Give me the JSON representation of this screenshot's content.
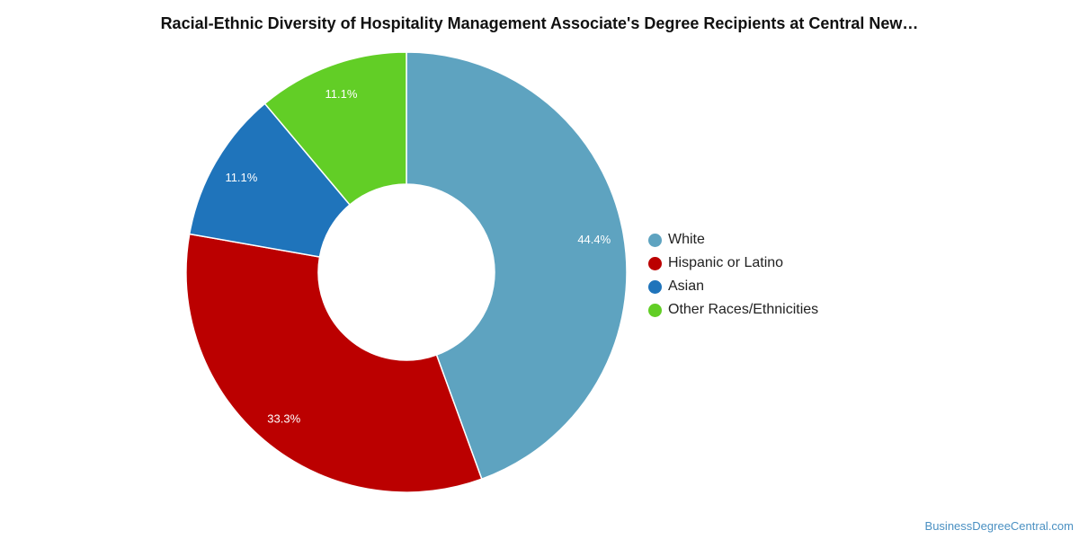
{
  "chart_data": {
    "type": "pie",
    "title": "Racial-Ethnic Diversity of Hospitality Management Associate's Degree Recipients at Central New…",
    "categories": [
      "White",
      "Hispanic or Latino",
      "Asian",
      "Other Races/Ethnicities"
    ],
    "values": [
      44.4,
      33.3,
      11.1,
      11.1
    ],
    "labels": [
      "44.4%",
      "33.3%",
      "11.1%",
      "11.1%"
    ],
    "colors": [
      "#5ea3c0",
      "#bb0000",
      "#1f74bb",
      "#62ce26"
    ],
    "donut": true,
    "legend_position": "right"
  },
  "legend": {
    "items": [
      {
        "label": "White",
        "color": "#5ea3c0"
      },
      {
        "label": "Hispanic or Latino",
        "color": "#bb0000"
      },
      {
        "label": "Asian",
        "color": "#1f74bb"
      },
      {
        "label": "Other Races/Ethnicities",
        "color": "#62ce26"
      }
    ]
  },
  "watermark": "BusinessDegreeCentral.com"
}
